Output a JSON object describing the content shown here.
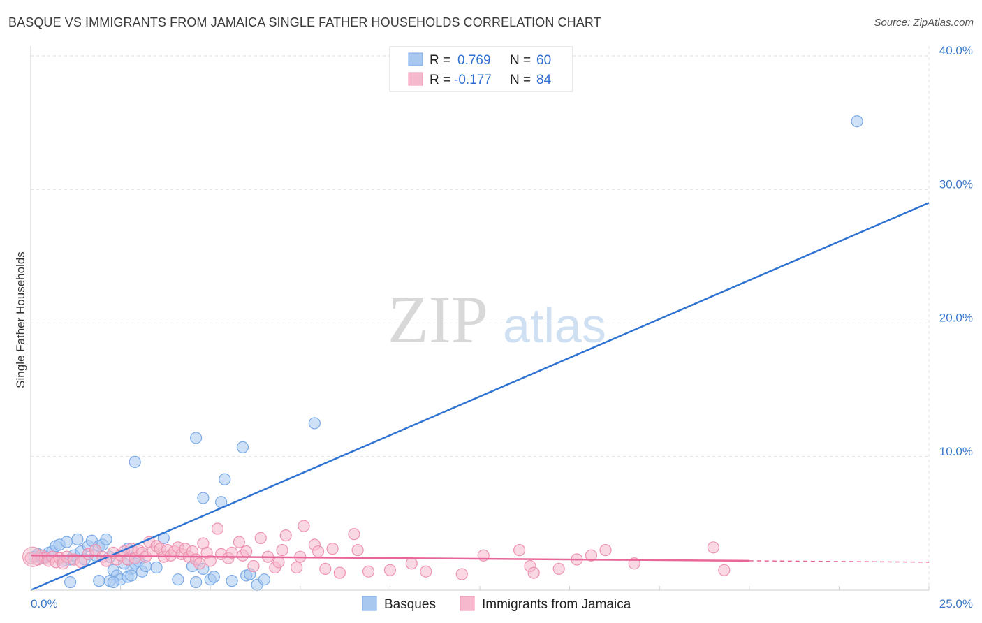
{
  "title": "BASQUE VS IMMIGRANTS FROM JAMAICA SINGLE FATHER HOUSEHOLDS CORRELATION CHART",
  "source": "Source: ZipAtlas.com",
  "watermark": {
    "zip": "ZIP",
    "atlas": "atlas"
  },
  "legend_top": [
    {
      "r_label": "R =",
      "r_value": "0.769",
      "n_label": "N =",
      "n_value": "60",
      "color": "#a8c8f0"
    },
    {
      "r_label": "R =",
      "r_value": "-0.177",
      "n_label": "N =",
      "n_value": "84",
      "color": "#f5b8cc"
    }
  ],
  "chart_data": {
    "type": "scatter",
    "ylabel": "Single Father Households",
    "xlim": [
      0,
      25
    ],
    "ylim": [
      0,
      40
    ],
    "x_tick_labels": [
      "0.0%",
      "25.0%"
    ],
    "y_ticks": [
      10,
      20,
      30,
      40
    ],
    "y_tick_labels": [
      "10.0%",
      "20.0%",
      "30.0%",
      "40.0%"
    ],
    "grid": true,
    "legend_position": "bottom",
    "series": [
      {
        "name": "Basques",
        "color": "#a8c8f0",
        "stroke": "#7aaae6",
        "trend": {
          "x": [
            0,
            25
          ],
          "y": [
            0,
            29
          ],
          "color": "#2e72d2"
        },
        "points": [
          [
            0.1,
            2.5
          ],
          [
            0.2,
            2.7
          ],
          [
            0.3,
            2.6
          ],
          [
            0.4,
            2.5
          ],
          [
            0.5,
            2.8
          ],
          [
            0.6,
            2.9
          ],
          [
            0.7,
            3.3
          ],
          [
            0.8,
            3.4
          ],
          [
            0.9,
            2.2
          ],
          [
            1.0,
            3.6
          ],
          [
            1.1,
            2.3
          ],
          [
            1.2,
            2.6
          ],
          [
            1.3,
            3.8
          ],
          [
            1.4,
            2.9
          ],
          [
            1.5,
            2.3
          ],
          [
            1.6,
            3.3
          ],
          [
            1.7,
            3.7
          ],
          [
            1.8,
            2.6
          ],
          [
            1.9,
            3.3
          ],
          [
            2.0,
            3.4
          ],
          [
            2.1,
            3.8
          ],
          [
            2.2,
            2.5
          ],
          [
            2.3,
            1.5
          ],
          [
            2.4,
            1.1
          ],
          [
            2.5,
            0.8
          ],
          [
            2.6,
            2.0
          ],
          [
            2.7,
            3.1
          ],
          [
            2.8,
            1.6
          ],
          [
            2.9,
            2.0
          ],
          [
            3.0,
            2.2
          ],
          [
            1.1,
            0.6
          ],
          [
            1.9,
            0.7
          ],
          [
            2.2,
            0.7
          ],
          [
            2.3,
            0.6
          ],
          [
            2.7,
            1.0
          ],
          [
            2.8,
            1.1
          ],
          [
            3.1,
            1.4
          ],
          [
            3.2,
            1.8
          ],
          [
            3.5,
            1.7
          ],
          [
            4.1,
            0.8
          ],
          [
            4.5,
            1.8
          ],
          [
            4.6,
            0.6
          ],
          [
            4.8,
            1.6
          ],
          [
            5.0,
            0.8
          ],
          [
            5.1,
            1.0
          ],
          [
            5.6,
            0.7
          ],
          [
            6.0,
            1.1
          ],
          [
            6.1,
            1.2
          ],
          [
            6.3,
            0.4
          ],
          [
            6.5,
            0.8
          ],
          [
            2.9,
            9.6
          ],
          [
            3.7,
            3.9
          ],
          [
            4.6,
            11.4
          ],
          [
            4.8,
            6.9
          ],
          [
            5.3,
            6.6
          ],
          [
            5.4,
            8.3
          ],
          [
            5.9,
            10.7
          ],
          [
            7.9,
            12.5
          ],
          [
            23.0,
            35.1
          ],
          [
            0.3,
            2.4
          ]
        ]
      },
      {
        "name": "Immigrants from Jamaica",
        "color": "#f5b8cc",
        "stroke": "#ee93b0",
        "trend": {
          "x": [
            0,
            20
          ],
          "y": [
            2.6,
            2.2
          ],
          "color": "#e8679a"
        },
        "trend_dashed": {
          "x": [
            20,
            25
          ],
          "y": [
            2.2,
            2.1
          ]
        },
        "points": [
          [
            0.0,
            2.4
          ],
          [
            0.2,
            2.3
          ],
          [
            0.3,
            2.6
          ],
          [
            0.4,
            2.4
          ],
          [
            0.5,
            2.2
          ],
          [
            0.6,
            2.5
          ],
          [
            0.7,
            2.1
          ],
          [
            0.8,
            2.4
          ],
          [
            0.9,
            2.0
          ],
          [
            1.0,
            2.5
          ],
          [
            1.2,
            2.3
          ],
          [
            1.4,
            2.1
          ],
          [
            1.6,
            2.7
          ],
          [
            1.8,
            3.0
          ],
          [
            2.0,
            2.5
          ],
          [
            2.1,
            2.2
          ],
          [
            2.3,
            2.8
          ],
          [
            2.4,
            2.3
          ],
          [
            2.5,
            2.6
          ],
          [
            2.6,
            2.9
          ],
          [
            2.7,
            2.3
          ],
          [
            2.8,
            3.1
          ],
          [
            2.9,
            2.4
          ],
          [
            3.0,
            3.0
          ],
          [
            3.1,
            2.8
          ],
          [
            3.2,
            2.5
          ],
          [
            3.3,
            3.6
          ],
          [
            3.4,
            2.9
          ],
          [
            3.5,
            3.3
          ],
          [
            3.6,
            3.1
          ],
          [
            3.7,
            2.5
          ],
          [
            3.8,
            3.0
          ],
          [
            3.9,
            2.6
          ],
          [
            4.0,
            2.9
          ],
          [
            4.1,
            3.2
          ],
          [
            4.2,
            2.7
          ],
          [
            4.3,
            3.1
          ],
          [
            4.4,
            2.5
          ],
          [
            4.5,
            2.9
          ],
          [
            4.6,
            2.3
          ],
          [
            4.7,
            2.0
          ],
          [
            4.8,
            3.5
          ],
          [
            4.9,
            2.8
          ],
          [
            5.0,
            2.2
          ],
          [
            5.2,
            4.6
          ],
          [
            5.3,
            2.7
          ],
          [
            5.5,
            2.4
          ],
          [
            5.6,
            2.8
          ],
          [
            5.8,
            3.6
          ],
          [
            5.9,
            2.6
          ],
          [
            6.0,
            2.9
          ],
          [
            6.2,
            1.8
          ],
          [
            6.4,
            3.9
          ],
          [
            6.6,
            2.5
          ],
          [
            6.8,
            1.7
          ],
          [
            6.9,
            2.1
          ],
          [
            7.0,
            3.0
          ],
          [
            7.1,
            4.1
          ],
          [
            7.4,
            1.7
          ],
          [
            7.5,
            2.5
          ],
          [
            7.6,
            4.8
          ],
          [
            7.9,
            3.4
          ],
          [
            8.0,
            2.9
          ],
          [
            8.2,
            1.6
          ],
          [
            8.4,
            3.1
          ],
          [
            8.6,
            1.3
          ],
          [
            9.0,
            4.2
          ],
          [
            9.1,
            3.0
          ],
          [
            9.4,
            1.4
          ],
          [
            10.0,
            1.5
          ],
          [
            10.6,
            2.0
          ],
          [
            11.0,
            1.4
          ],
          [
            12.0,
            1.2
          ],
          [
            12.6,
            2.6
          ],
          [
            13.6,
            3.0
          ],
          [
            13.9,
            1.8
          ],
          [
            14.0,
            1.3
          ],
          [
            14.7,
            1.6
          ],
          [
            15.2,
            2.3
          ],
          [
            15.6,
            2.6
          ],
          [
            16.0,
            3.0
          ],
          [
            16.8,
            2.0
          ],
          [
            19.0,
            3.2
          ],
          [
            19.3,
            1.5
          ]
        ]
      }
    ]
  }
}
